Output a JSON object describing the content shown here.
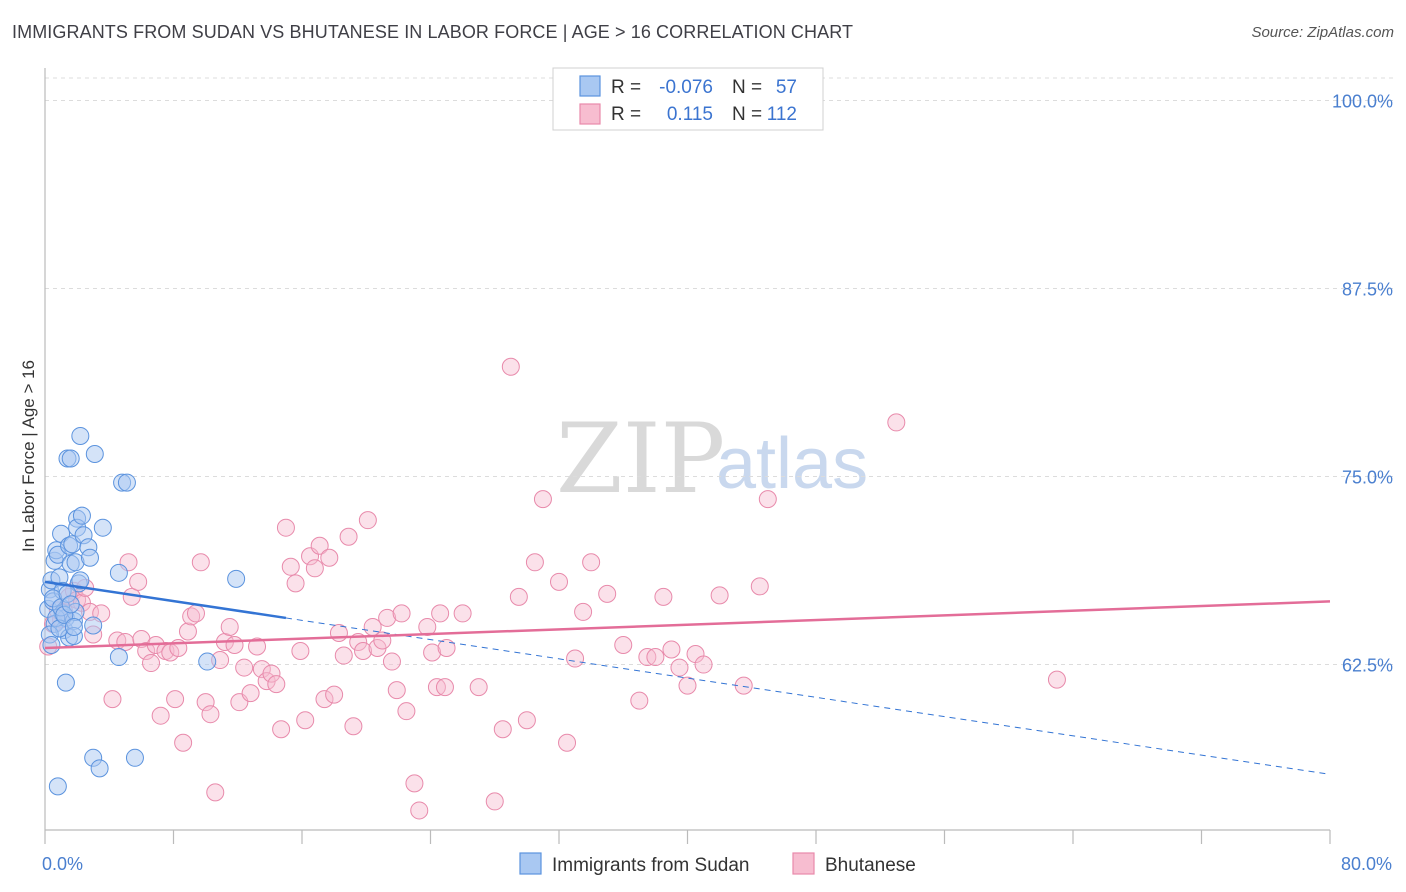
{
  "title": "IMMIGRANTS FROM SUDAN VS BHUTANESE IN LABOR FORCE | AGE > 16 CORRELATION CHART",
  "source": "Source: ZipAtlas.com",
  "watermark": {
    "zip": "ZIP",
    "atlas": "atlas"
  },
  "legend_box": {
    "rows": [
      {
        "r_label": "R =",
        "r_value": "-0.076",
        "n_label": "N =",
        "n_value": "57"
      },
      {
        "r_label": "R =",
        "r_value": "0.115",
        "n_label": "N =",
        "n_value": "112"
      }
    ]
  },
  "bottom_legend": {
    "items": [
      {
        "label": "Immigrants from Sudan"
      },
      {
        "label": "Bhutanese"
      }
    ]
  },
  "colors": {
    "sudan_fill": "#a9c8f2",
    "sudan_stroke": "#5b93de",
    "sudan_line": "#3374d4",
    "bhutan_fill": "#f7bdd0",
    "bhutan_stroke": "#e88aab",
    "bhutan_line": "#e36d98",
    "grid": "#dcdcdc",
    "tick_text": "#4a7fcf"
  },
  "chart_data": {
    "type": "scatter",
    "title": "IMMIGRANTS FROM SUDAN VS BHUTANESE IN LABOR FORCE | AGE > 16 CORRELATION CHART",
    "xlabel": "",
    "ylabel": "In Labor Force | Age > 16",
    "xlim": [
      0,
      80
    ],
    "ylim": [
      51.5,
      101.5
    ],
    "x_tick_labels": [
      {
        "value": 0,
        "label": "0.0%"
      },
      {
        "value": 80,
        "label": "80.0%"
      }
    ],
    "y_ticks": [
      {
        "value": 100,
        "label": "100.0%"
      },
      {
        "value": 87.5,
        "label": "87.5%"
      },
      {
        "value": 75,
        "label": "75.0%"
      },
      {
        "value": 62.5,
        "label": "62.5%"
      }
    ],
    "grid": true,
    "legend_position": "top-center",
    "series": [
      {
        "name": "Immigrants from Sudan",
        "r": -0.076,
        "n": 57,
        "trend": {
          "x0": 0,
          "y0": 68.0,
          "x1": 15,
          "y1": 65.6,
          "dashed_to_x": 80,
          "dashed_to_y": 55.2
        },
        "points": [
          [
            0.2,
            66.2
          ],
          [
            0.3,
            67.5
          ],
          [
            0.4,
            68.1
          ],
          [
            0.5,
            66.7
          ],
          [
            0.6,
            65.2
          ],
          [
            0.6,
            69.4
          ],
          [
            0.7,
            70.1
          ],
          [
            0.8,
            69.8
          ],
          [
            0.9,
            68.3
          ],
          [
            1.0,
            71.2
          ],
          [
            1.1,
            67.4
          ],
          [
            1.1,
            65.9
          ],
          [
            1.2,
            64.8
          ],
          [
            1.3,
            65.6
          ],
          [
            1.4,
            76.2
          ],
          [
            1.5,
            70.4
          ],
          [
            1.5,
            64.3
          ],
          [
            1.6,
            76.2
          ],
          [
            1.6,
            69.2
          ],
          [
            1.7,
            70.5
          ],
          [
            1.8,
            65.4
          ],
          [
            1.8,
            64.4
          ],
          [
            1.9,
            66.0
          ],
          [
            1.9,
            69.3
          ],
          [
            2.0,
            72.2
          ],
          [
            2.0,
            71.6
          ],
          [
            2.1,
            67.9
          ],
          [
            2.2,
            77.7
          ],
          [
            2.2,
            68.1
          ],
          [
            2.3,
            72.4
          ],
          [
            2.4,
            71.1
          ],
          [
            2.7,
            70.3
          ],
          [
            2.8,
            69.6
          ],
          [
            3.0,
            65.1
          ],
          [
            3.1,
            76.5
          ],
          [
            3.6,
            71.6
          ],
          [
            4.6,
            68.6
          ],
          [
            4.6,
            63.0
          ],
          [
            4.8,
            74.6
          ],
          [
            5.1,
            74.6
          ],
          [
            0.8,
            54.4
          ],
          [
            1.3,
            61.3
          ],
          [
            3.0,
            56.3
          ],
          [
            3.4,
            55.6
          ],
          [
            5.6,
            56.3
          ],
          [
            10.1,
            62.7
          ],
          [
            11.9,
            68.2
          ],
          [
            0.3,
            64.5
          ],
          [
            0.4,
            63.8
          ],
          [
            0.5,
            66.9
          ],
          [
            0.7,
            65.6
          ],
          [
            0.9,
            64.9
          ],
          [
            1.0,
            66.3
          ],
          [
            1.2,
            65.8
          ],
          [
            1.4,
            67.2
          ],
          [
            1.6,
            66.5
          ],
          [
            1.8,
            65.0
          ]
        ]
      },
      {
        "name": "Bhutanese",
        "r": 0.115,
        "n": 112,
        "trend": {
          "x0": 0,
          "y0": 63.6,
          "x1": 80,
          "y1": 66.7
        },
        "points": [
          [
            0.2,
            63.7
          ],
          [
            0.5,
            65.2
          ],
          [
            0.8,
            66.1
          ],
          [
            1.0,
            65.5
          ],
          [
            1.2,
            66.0
          ],
          [
            1.5,
            67.0
          ],
          [
            1.8,
            67.4
          ],
          [
            2.0,
            66.8
          ],
          [
            2.3,
            66.6
          ],
          [
            2.5,
            67.6
          ],
          [
            2.8,
            66.0
          ],
          [
            3.0,
            64.5
          ],
          [
            3.5,
            65.9
          ],
          [
            4.2,
            60.2
          ],
          [
            4.5,
            64.1
          ],
          [
            5.0,
            64.0
          ],
          [
            5.2,
            69.3
          ],
          [
            5.4,
            67.0
          ],
          [
            5.8,
            68.0
          ],
          [
            6.0,
            64.2
          ],
          [
            6.3,
            63.4
          ],
          [
            6.6,
            62.6
          ],
          [
            6.9,
            63.8
          ],
          [
            7.2,
            59.1
          ],
          [
            7.5,
            63.4
          ],
          [
            7.8,
            63.3
          ],
          [
            8.1,
            60.2
          ],
          [
            8.3,
            63.6
          ],
          [
            8.6,
            57.3
          ],
          [
            8.9,
            64.7
          ],
          [
            9.1,
            65.7
          ],
          [
            9.4,
            65.9
          ],
          [
            9.7,
            69.3
          ],
          [
            10.0,
            60.0
          ],
          [
            10.3,
            59.2
          ],
          [
            10.6,
            54.0
          ],
          [
            10.9,
            62.8
          ],
          [
            11.2,
            64.0
          ],
          [
            11.5,
            65.0
          ],
          [
            11.8,
            63.8
          ],
          [
            12.1,
            60.0
          ],
          [
            12.4,
            62.3
          ],
          [
            12.8,
            60.6
          ],
          [
            13.2,
            63.7
          ],
          [
            13.5,
            62.2
          ],
          [
            13.8,
            61.4
          ],
          [
            14.1,
            61.9
          ],
          [
            14.4,
            61.2
          ],
          [
            14.7,
            58.2
          ],
          [
            15.0,
            71.6
          ],
          [
            15.3,
            69.0
          ],
          [
            15.6,
            67.9
          ],
          [
            15.9,
            63.4
          ],
          [
            16.2,
            58.8
          ],
          [
            16.5,
            69.7
          ],
          [
            16.8,
            68.9
          ],
          [
            17.1,
            70.4
          ],
          [
            17.4,
            60.2
          ],
          [
            17.7,
            69.6
          ],
          [
            18.0,
            60.5
          ],
          [
            18.3,
            64.6
          ],
          [
            18.6,
            63.1
          ],
          [
            18.9,
            71.0
          ],
          [
            19.2,
            58.4
          ],
          [
            19.5,
            64.0
          ],
          [
            19.8,
            63.4
          ],
          [
            20.1,
            72.1
          ],
          [
            20.4,
            65.0
          ],
          [
            20.7,
            63.6
          ],
          [
            21.0,
            64.1
          ],
          [
            21.3,
            65.6
          ],
          [
            21.6,
            62.7
          ],
          [
            21.9,
            60.8
          ],
          [
            22.2,
            65.9
          ],
          [
            22.5,
            59.4
          ],
          [
            23.0,
            54.6
          ],
          [
            23.3,
            52.8
          ],
          [
            23.8,
            65.0
          ],
          [
            24.1,
            63.3
          ],
          [
            24.4,
            61.0
          ],
          [
            24.6,
            65.9
          ],
          [
            24.9,
            61.0
          ],
          [
            25.0,
            63.6
          ],
          [
            26.0,
            65.9
          ],
          [
            27.0,
            61.0
          ],
          [
            28.0,
            53.4
          ],
          [
            28.5,
            58.2
          ],
          [
            29.0,
            82.3
          ],
          [
            29.5,
            67.0
          ],
          [
            30.0,
            58.8
          ],
          [
            30.5,
            69.3
          ],
          [
            31.0,
            73.5
          ],
          [
            32.0,
            68.0
          ],
          [
            32.5,
            57.3
          ],
          [
            33.0,
            62.9
          ],
          [
            33.5,
            66.0
          ],
          [
            34.0,
            69.3
          ],
          [
            35.0,
            67.2
          ],
          [
            36.0,
            63.8
          ],
          [
            37.0,
            60.1
          ],
          [
            37.5,
            63.0
          ],
          [
            38.0,
            63.0
          ],
          [
            38.5,
            67.0
          ],
          [
            39.0,
            63.5
          ],
          [
            39.5,
            62.3
          ],
          [
            40.0,
            61.1
          ],
          [
            40.5,
            63.2
          ],
          [
            41.0,
            62.5
          ],
          [
            42.0,
            67.1
          ],
          [
            43.5,
            61.1
          ],
          [
            44.5,
            67.7
          ],
          [
            45.0,
            73.5
          ],
          [
            53.0,
            78.6
          ],
          [
            63.0,
            61.5
          ]
        ]
      }
    ]
  }
}
